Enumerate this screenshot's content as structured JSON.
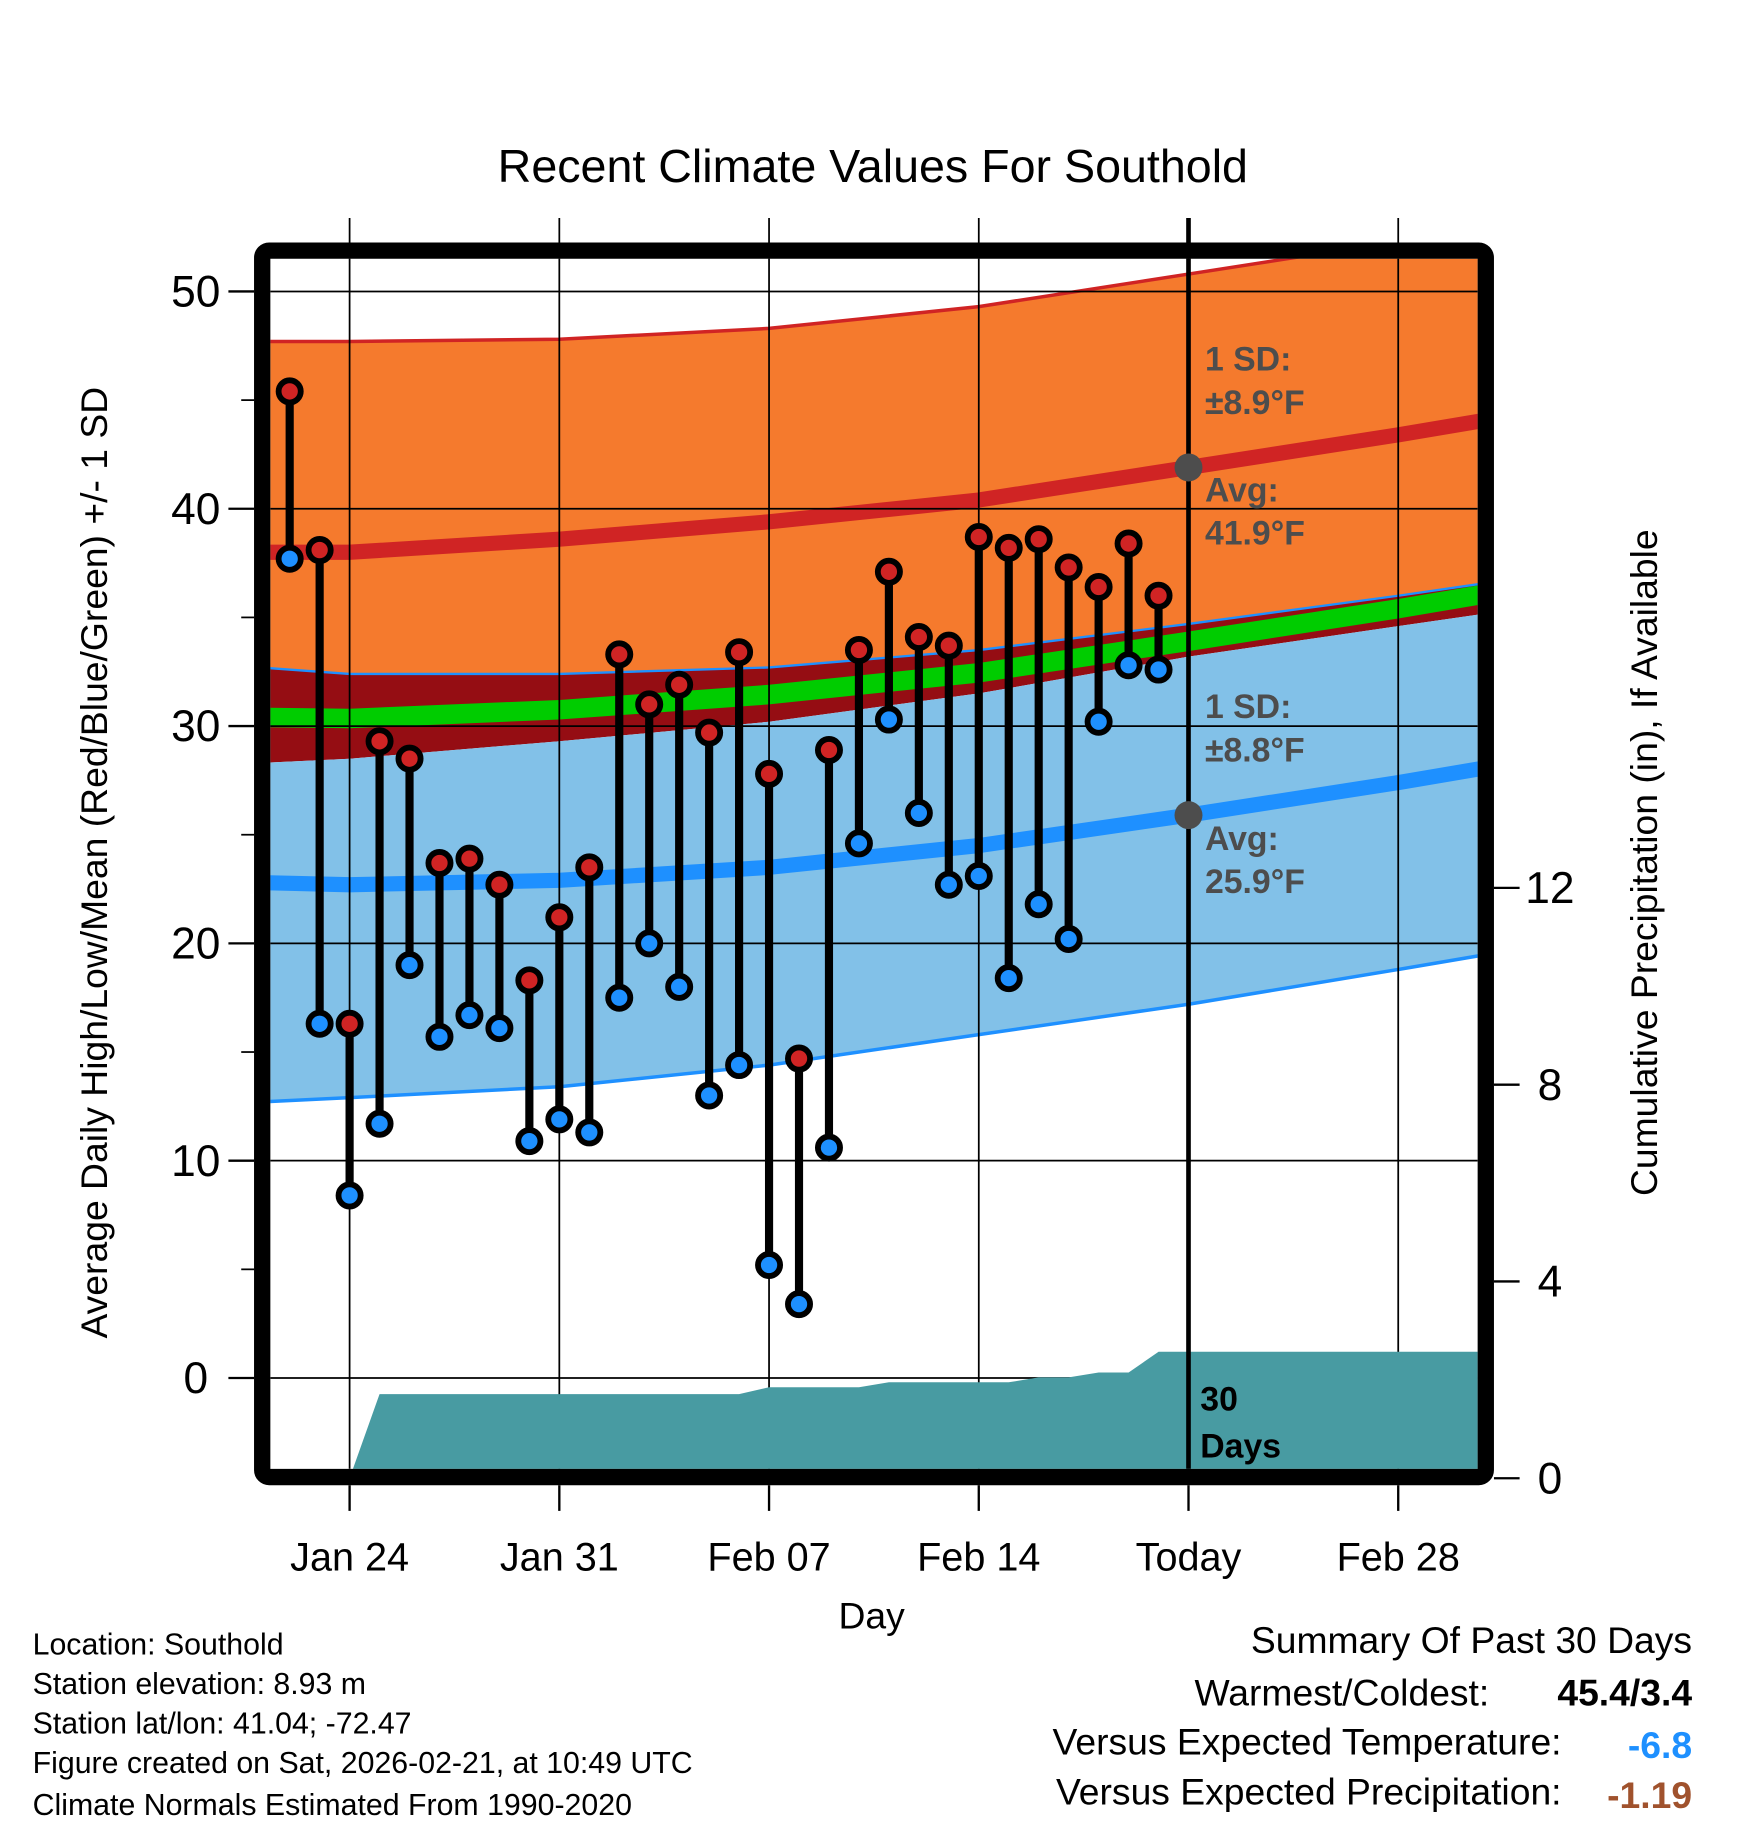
{
  "chart_data": {
    "type": "line",
    "title": "Recent Climate Values For Southold",
    "xlabel": "Day",
    "ylabel": "Average Daily High/Low/Mean (Red/Blue/Green) +/- 1 SD",
    "y2label": "Cumulative Precipitation (in), If Available",
    "ylim": [
      -4.2,
      51.5
    ],
    "y2lim": [
      0,
      16
    ],
    "yticks": [
      "0",
      "10",
      "20",
      "30",
      "40",
      "50"
    ],
    "y2ticks": [
      "0",
      "4",
      "8",
      "12"
    ],
    "xticks": [
      {
        "date": "Jan 24",
        "label": "Jan 24"
      },
      {
        "date": "Jan 31",
        "label": "Jan 31"
      },
      {
        "date": "Feb 07",
        "label": "Feb 07"
      },
      {
        "date": "Feb 14",
        "label": "Feb 14"
      },
      {
        "date": "Feb 21",
        "label": "Today"
      },
      {
        "date": "Feb 28",
        "label": "Feb 28"
      }
    ],
    "grid": true,
    "today": "Feb 21",
    "daily": {
      "dates": [
        "Jan 22",
        "Jan 23",
        "Jan 24",
        "Jan 25",
        "Jan 26",
        "Jan 27",
        "Jan 28",
        "Jan 29",
        "Jan 30",
        "Jan 31",
        "Feb 01",
        "Feb 02",
        "Feb 03",
        "Feb 04",
        "Feb 05",
        "Feb 06",
        "Feb 07",
        "Feb 08",
        "Feb 09",
        "Feb 10",
        "Feb 11",
        "Feb 12",
        "Feb 13",
        "Feb 14",
        "Feb 15",
        "Feb 16",
        "Feb 17",
        "Feb 18",
        "Feb 19",
        "Feb 20"
      ],
      "high": [
        45.4,
        38.1,
        16.3,
        29.3,
        28.5,
        23.7,
        23.9,
        22.7,
        18.3,
        21.2,
        23.5,
        33.3,
        31.0,
        31.9,
        29.7,
        33.4,
        27.8,
        14.7,
        28.9,
        33.5,
        37.1,
        34.1,
        33.7,
        38.7,
        38.2,
        38.6,
        37.3,
        36.4,
        38.4,
        36.0
      ],
      "low": [
        37.7,
        16.3,
        8.4,
        11.7,
        19.0,
        15.7,
        16.7,
        16.1,
        10.9,
        11.9,
        11.3,
        17.5,
        20.0,
        18.0,
        13.0,
        14.4,
        5.2,
        3.4,
        10.6,
        24.6,
        30.3,
        26.0,
        22.7,
        23.1,
        18.4,
        21.8,
        20.2,
        30.2,
        32.8,
        32.6
      ],
      "precip_cumulative": [
        0,
        0,
        0,
        1.71,
        1.71,
        1.71,
        1.71,
        1.71,
        1.71,
        1.71,
        1.71,
        1.71,
        1.71,
        1.71,
        1.71,
        1.71,
        1.85,
        1.85,
        1.85,
        1.85,
        1.95,
        1.95,
        1.95,
        1.95,
        1.95,
        2.05,
        2.05,
        2.15,
        2.15,
        2.57
      ]
    },
    "normals": {
      "dates": [
        "Jan 21",
        "Jan 24",
        "Jan 31",
        "Feb 07",
        "Feb 14",
        "Feb 21",
        "Feb 28",
        "Mar 03"
      ],
      "high_upper": [
        47.7,
        47.7,
        47.8,
        48.3,
        49.3,
        50.8,
        52.3,
        53.0
      ],
      "high_avg": [
        38.0,
        38.0,
        38.6,
        39.4,
        40.4,
        41.9,
        43.4,
        44.1
      ],
      "high_lower": [
        32.7,
        32.4,
        32.4,
        32.7,
        33.5,
        34.7,
        36.0,
        36.6
      ],
      "low_upper": [
        28.3,
        28.5,
        29.3,
        30.2,
        31.5,
        33.2,
        34.6,
        35.2
      ],
      "low_avg": [
        22.8,
        22.7,
        22.9,
        23.5,
        24.5,
        25.9,
        27.4,
        28.1
      ],
      "low_lower": [
        12.7,
        12.9,
        13.4,
        14.4,
        15.8,
        17.2,
        18.8,
        19.5
      ],
      "mean": [
        30.4,
        30.35,
        30.75,
        31.45,
        32.45,
        33.9,
        35.4,
        36.1
      ]
    },
    "annotations": {
      "high_sd_label": "1 SD:",
      "high_sd_value": "±8.9°F",
      "high_avg_label": "Avg:",
      "high_avg_value": "41.9°F",
      "low_sd_label": "1 SD:",
      "low_sd_value": "±8.8°F",
      "low_avg_label": "Avg:",
      "low_avg_value": "25.9°F",
      "today_high_avg": 41.9,
      "today_low_avg": 25.9,
      "precip_days_1": "30",
      "precip_days_2": "Days"
    },
    "colors": {
      "high_band": "#f57a2d",
      "high_line": "#d02424",
      "overlap": "#950d13",
      "mean": "#00cc00",
      "low_band": "#82c1e8",
      "low_line": "#1e90ff",
      "precip": "#489ba2",
      "high_dot": "#d02424",
      "low_dot": "#1e90ff",
      "marker": "#4d4d4d"
    }
  },
  "info": [
    "Location: Southold",
    "Station elevation: 8.93 m",
    "Station lat/lon: 41.04; -72.47",
    "Figure created on Sat, 2026-02-21, at 10:49 UTC",
    "Climate Normals Estimated From 1990-2020"
  ],
  "summary": {
    "title": "Summary Of Past 30 Days",
    "warm_cold_label": "Warmest/Coldest:",
    "warm_cold_value": "45.4/3.4",
    "temp_label": "Versus Expected Temperature:",
    "temp_value": "-6.8",
    "temp_color": "#1e90ff",
    "precip_label": "Versus Expected Precipitation:",
    "precip_value": "-1.19",
    "precip_color": "#a0522d"
  }
}
